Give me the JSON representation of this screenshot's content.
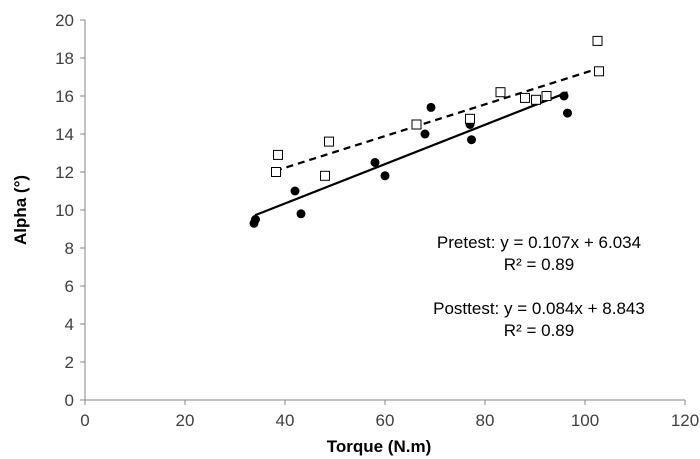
{
  "chart_data": {
    "type": "scatter",
    "xlabel": "Torque (N.m)",
    "ylabel": "Alpha (°)",
    "xlim": [
      0,
      120
    ],
    "ylim": [
      0,
      20
    ],
    "x_ticks": [
      0,
      20,
      40,
      60,
      80,
      100,
      120
    ],
    "y_ticks": [
      0,
      2,
      4,
      6,
      8,
      10,
      12,
      14,
      16,
      18,
      20
    ],
    "grid": false,
    "legend": "none",
    "series": [
      {
        "marker": "filled-circle",
        "color": "#000000",
        "points": [
          [
            33.8,
            9.3
          ],
          [
            34.1,
            9.5
          ],
          [
            42.0,
            11.0
          ],
          [
            43.2,
            9.8
          ],
          [
            58.0,
            12.5
          ],
          [
            60.0,
            11.8
          ],
          [
            68.0,
            14.0
          ],
          [
            69.2,
            15.4
          ],
          [
            77.0,
            14.5
          ],
          [
            77.3,
            13.7
          ],
          [
            95.8,
            16.0
          ],
          [
            96.5,
            15.1
          ]
        ],
        "trendline": {
          "style": "solid",
          "x_range": [
            34,
            96.5
          ]
        }
      },
      {
        "marker": "open-square",
        "color": "#000000",
        "points": [
          [
            38.2,
            12.0
          ],
          [
            38.6,
            12.9
          ],
          [
            48.0,
            11.8
          ],
          [
            48.8,
            13.6
          ],
          [
            66.3,
            14.5
          ],
          [
            77.0,
            14.8
          ],
          [
            83.1,
            16.2
          ],
          [
            88.0,
            15.9
          ],
          [
            90.2,
            15.8
          ],
          [
            92.3,
            16.0
          ],
          [
            102.5,
            18.9
          ],
          [
            102.8,
            17.3
          ]
        ],
        "trendline": {
          "style": "dashed",
          "x_range": [
            38,
            103
          ]
        }
      }
    ],
    "annotations": [
      "Pretest: y = 0.107x + 6.034",
      "R² = 0.89",
      "Posttest: y = 0.084x + 8.843",
      "R² = 0.89"
    ]
  }
}
